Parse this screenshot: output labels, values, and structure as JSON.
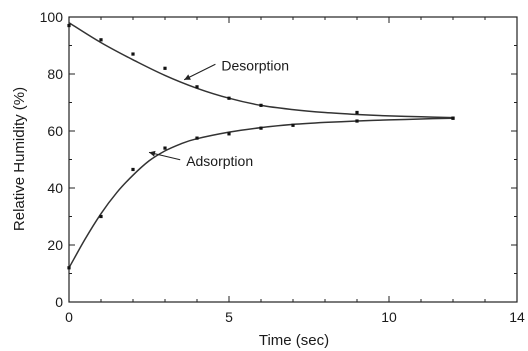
{
  "chart_data": {
    "type": "line",
    "title": "",
    "xlabel": "Time (sec)",
    "ylabel": "Relative Humidity (%)",
    "xlim": [
      0,
      14
    ],
    "ylim": [
      0,
      100
    ],
    "xticks": [
      0,
      5,
      10,
      14
    ],
    "yticks": [
      0,
      20,
      40,
      60,
      80,
      100
    ],
    "grid": false,
    "series": [
      {
        "points": [
          [
            0,
            97
          ],
          [
            1,
            92
          ],
          [
            2,
            87
          ],
          [
            3,
            82
          ],
          [
            4,
            75.5
          ],
          [
            5,
            71.5
          ],
          [
            6,
            69
          ],
          [
            9,
            66.5
          ],
          [
            12,
            64.5
          ]
        ],
        "curve": [
          [
            0,
            98
          ],
          [
            1,
            91
          ],
          [
            2,
            85
          ],
          [
            3,
            79.5
          ],
          [
            4,
            75
          ],
          [
            5,
            71.5
          ],
          [
            6,
            69
          ],
          [
            7,
            67.5
          ],
          [
            8,
            66.5
          ],
          [
            9,
            65.8
          ],
          [
            10,
            65.3
          ],
          [
            11,
            65
          ],
          [
            12,
            64.7
          ]
        ]
      },
      {
        "points": [
          [
            0,
            12
          ],
          [
            1,
            30
          ],
          [
            2,
            46.5
          ],
          [
            3,
            54
          ],
          [
            4,
            57.5
          ],
          [
            5,
            59
          ],
          [
            6,
            61
          ],
          [
            7,
            62
          ],
          [
            9,
            63.5
          ],
          [
            12,
            64.5
          ]
        ],
        "curve": [
          [
            0,
            12
          ],
          [
            0.5,
            22
          ],
          [
            1,
            31
          ],
          [
            1.5,
            38.5
          ],
          [
            2,
            44.5
          ],
          [
            2.5,
            49.5
          ],
          [
            3,
            53
          ],
          [
            3.5,
            55.5
          ],
          [
            4,
            57.3
          ],
          [
            5,
            59.6
          ],
          [
            6,
            61.2
          ],
          [
            7,
            62.3
          ],
          [
            8,
            63
          ],
          [
            9,
            63.5
          ],
          [
            10,
            63.9
          ],
          [
            11,
            64.2
          ],
          [
            12,
            64.5
          ]
        ]
      }
    ],
    "annotations": [
      {
        "text": "Desorption",
        "anchor": [
          3.6,
          78
        ],
        "label_at": [
          4.7,
          82
        ]
      },
      {
        "text": "Adsorption",
        "anchor": [
          2.5,
          52.5
        ],
        "label_at": [
          3.6,
          48.5
        ]
      }
    ]
  }
}
